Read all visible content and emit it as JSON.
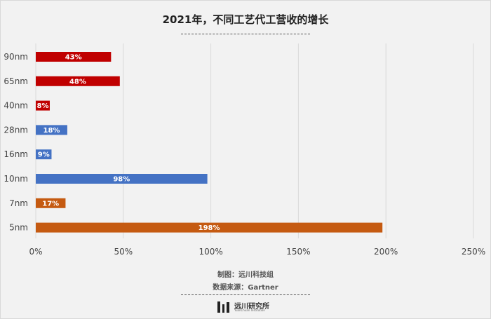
{
  "colors": {
    "red": "#c00000",
    "blue": "#4472c4",
    "orange": "#c55a11",
    "grid": "#d9d9d9"
  },
  "credits": {
    "made_by": "制图：远川科技组",
    "source": "数据来源：Gartner"
  },
  "logo": {
    "name": "远川研究所",
    "sub": "YuanChuan Institution",
    "icon": "bars-logo-icon"
  },
  "chart_data": {
    "type": "bar",
    "orientation": "horizontal",
    "title": "2021年，不同工艺代工营收的增长",
    "categories": [
      "90nm",
      "65nm",
      "40nm",
      "28nm",
      "16nm",
      "10nm",
      "7nm",
      "5nm"
    ],
    "values": [
      43,
      48,
      8,
      18,
      9,
      98,
      17,
      198
    ],
    "data_labels": [
      "43%",
      "48%",
      "8%",
      "18%",
      "9%",
      "98%",
      "17%",
      "198%"
    ],
    "bar_colors": [
      "#c00000",
      "#c00000",
      "#c00000",
      "#4472c4",
      "#4472c4",
      "#4472c4",
      "#c55a11",
      "#c55a11"
    ],
    "x_ticks": [
      0,
      50,
      100,
      150,
      200,
      250
    ],
    "x_tick_labels": [
      "0%",
      "50%",
      "100%",
      "150%",
      "200%",
      "250%"
    ],
    "xlim": [
      0,
      250
    ],
    "grid": "vertical",
    "legend": "none"
  }
}
